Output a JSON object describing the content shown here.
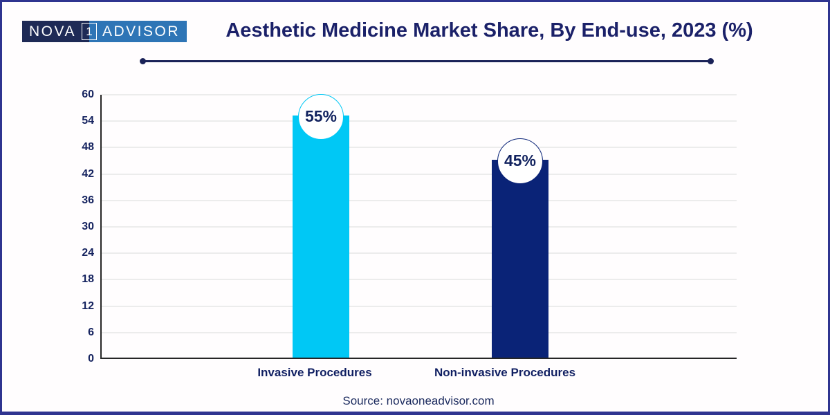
{
  "logo": {
    "part1": "NOVA",
    "part2": "1",
    "part3": "ADVISOR",
    "dark_color": "#1e2a56",
    "light_color": "#2e75b6"
  },
  "chart_data": {
    "type": "bar",
    "title": "Aesthetic Medicine Market Share, By End-use, 2023 (%)",
    "categories": [
      "Invasive Procedures",
      "Non-invasive Procedures"
    ],
    "values": [
      55,
      45
    ],
    "value_labels": [
      "55%",
      "45%"
    ],
    "bar_colors": [
      "#00c8f5",
      "#0a2377"
    ],
    "xlabel": "",
    "ylabel": "",
    "ylim": [
      0,
      60
    ],
    "yticks": [
      0,
      6,
      12,
      18,
      24,
      30,
      36,
      42,
      48,
      54,
      60
    ],
    "grid": true,
    "legend": false,
    "accent_navy": "#1a2258",
    "grid_color": "#ececec"
  },
  "footer": {
    "source": "Source: novaoneadvisor.com"
  }
}
